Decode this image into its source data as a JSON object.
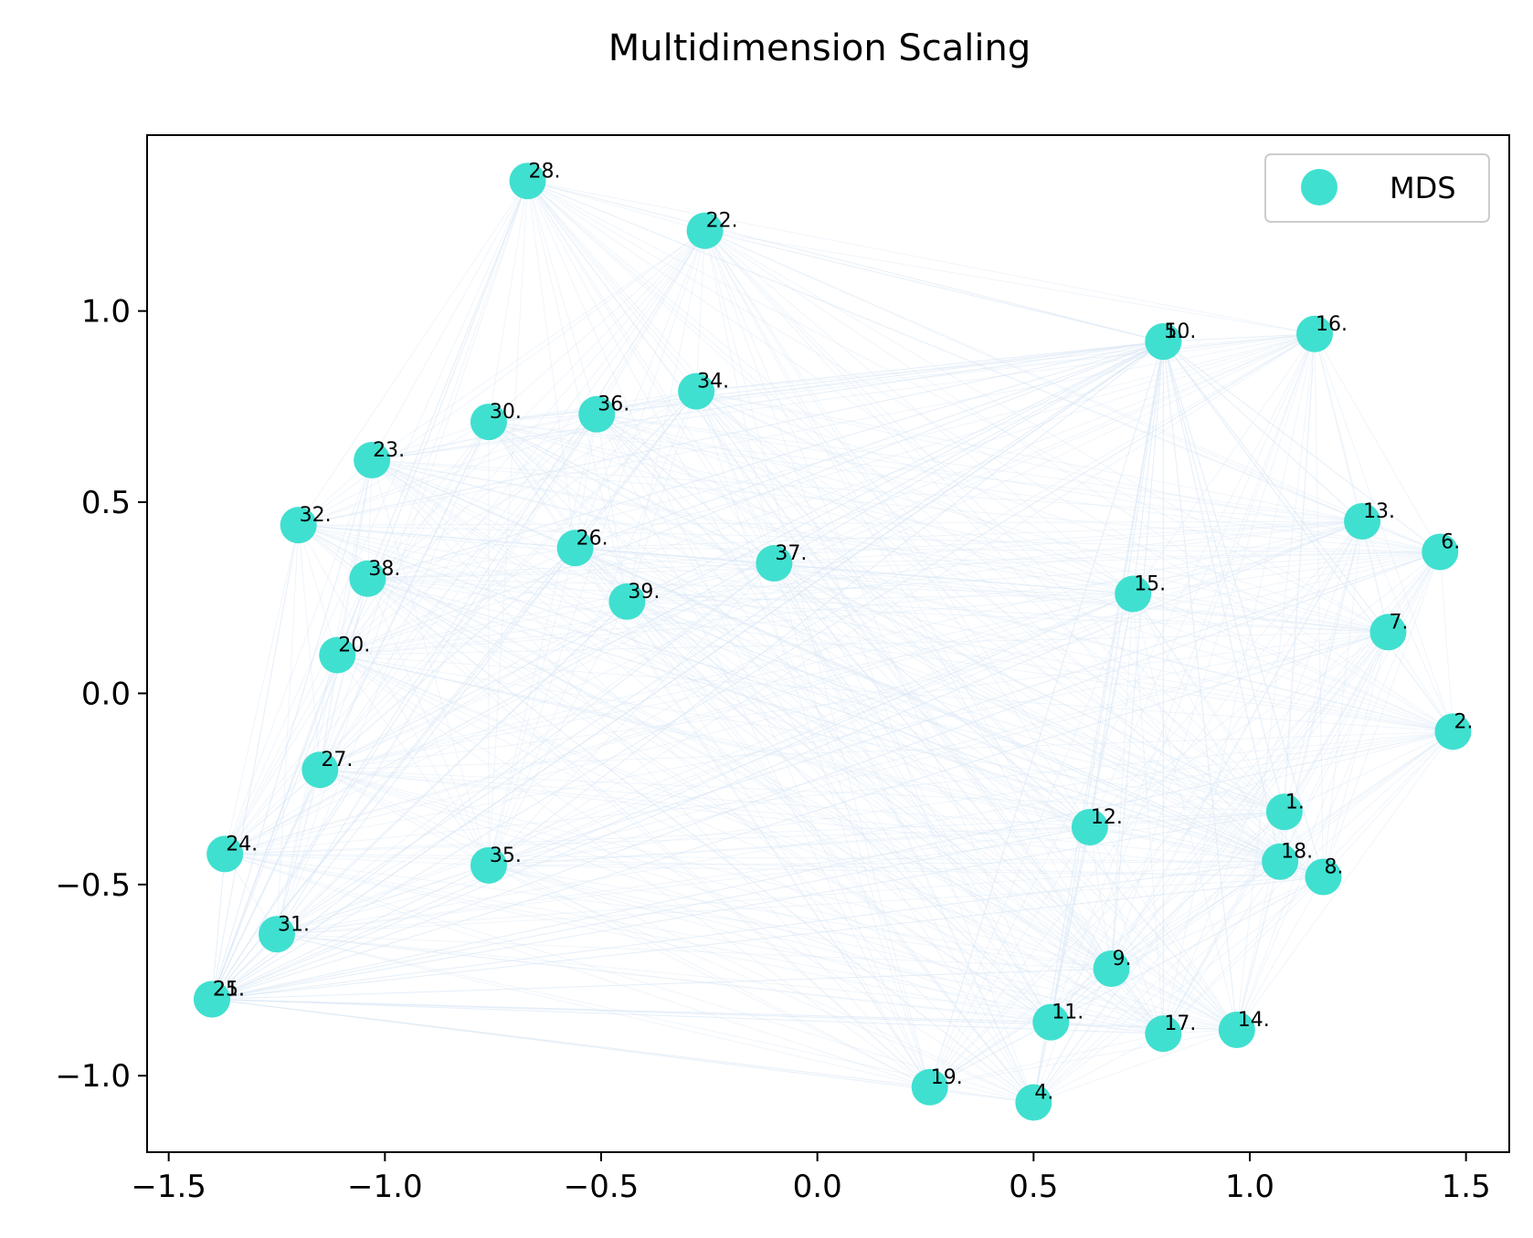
{
  "chart_data": {
    "type": "scatter",
    "title": "Multidimension Scaling",
    "xlabel": "",
    "ylabel": "",
    "xlim": [
      -1.55,
      1.6
    ],
    "ylim": [
      -1.2,
      1.46
    ],
    "xticks": [
      -1.5,
      -1.0,
      -0.5,
      0.0,
      0.5,
      1.0,
      1.5
    ],
    "yticks": [
      -1.0,
      -0.5,
      0.0,
      0.5,
      1.0
    ],
    "xtick_labels": [
      "−1.5",
      "−1.0",
      "−0.5",
      "0.0",
      "0.5",
      "1.0",
      "1.5"
    ],
    "ytick_labels": [
      "−1.0",
      "−0.5",
      "0.0",
      "0.5",
      "1.0"
    ],
    "grid": false,
    "legend": {
      "placement": "top-right",
      "entries": [
        "MDS"
      ]
    },
    "colors": {
      "points": "#40e0d0",
      "edges": "#dbe9f7",
      "axes": "#000000"
    },
    "series": [
      {
        "name": "MDS",
        "points": [
          {
            "label": "1.",
            "x": 1.08,
            "y": -0.31
          },
          {
            "label": "2.",
            "x": 1.47,
            "y": -0.1
          },
          {
            "label": "4.",
            "x": 0.5,
            "y": -1.07
          },
          {
            "label": "5.",
            "x": 0.8,
            "y": 0.92
          },
          {
            "label": "6.",
            "x": 1.44,
            "y": 0.37
          },
          {
            "label": "7.",
            "x": 1.32,
            "y": 0.16
          },
          {
            "label": "8.",
            "x": 1.17,
            "y": -0.48
          },
          {
            "label": "9.",
            "x": 0.68,
            "y": -0.72
          },
          {
            "label": "10.",
            "x": 0.8,
            "y": 0.92
          },
          {
            "label": "11.",
            "x": 0.54,
            "y": -0.86
          },
          {
            "label": "12.",
            "x": 0.63,
            "y": -0.35
          },
          {
            "label": "13.",
            "x": 1.26,
            "y": 0.45
          },
          {
            "label": "14.",
            "x": 0.97,
            "y": -0.88
          },
          {
            "label": "15.",
            "x": 0.73,
            "y": 0.26
          },
          {
            "label": "16.",
            "x": 1.15,
            "y": 0.94
          },
          {
            "label": "17.",
            "x": 0.8,
            "y": -0.89
          },
          {
            "label": "18.",
            "x": 1.07,
            "y": -0.44
          },
          {
            "label": "19.",
            "x": 0.26,
            "y": -1.03
          },
          {
            "label": "20.",
            "x": -1.11,
            "y": 0.1
          },
          {
            "label": "21.",
            "x": -1.4,
            "y": -0.8
          },
          {
            "label": "22.",
            "x": -0.26,
            "y": 1.21
          },
          {
            "label": "23.",
            "x": -1.03,
            "y": 0.61
          },
          {
            "label": "24.",
            "x": -1.37,
            "y": -0.42
          },
          {
            "label": "25.",
            "x": -1.4,
            "y": -0.8
          },
          {
            "label": "26.",
            "x": -0.56,
            "y": 0.38
          },
          {
            "label": "27.",
            "x": -1.15,
            "y": -0.2
          },
          {
            "label": "28.",
            "x": -0.67,
            "y": 1.34
          },
          {
            "label": "30.",
            "x": -0.76,
            "y": 0.71
          },
          {
            "label": "31.",
            "x": -1.25,
            "y": -0.63
          },
          {
            "label": "32.",
            "x": -1.2,
            "y": 0.44
          },
          {
            "label": "34.",
            "x": -0.28,
            "y": 0.79
          },
          {
            "label": "35.",
            "x": -0.76,
            "y": -0.45
          },
          {
            "label": "36.",
            "x": -0.51,
            "y": 0.73
          },
          {
            "label": "37.",
            "x": -0.1,
            "y": 0.34
          },
          {
            "label": "38.",
            "x": -1.04,
            "y": 0.3
          },
          {
            "label": "39.",
            "x": -0.44,
            "y": 0.24
          }
        ]
      }
    ]
  }
}
